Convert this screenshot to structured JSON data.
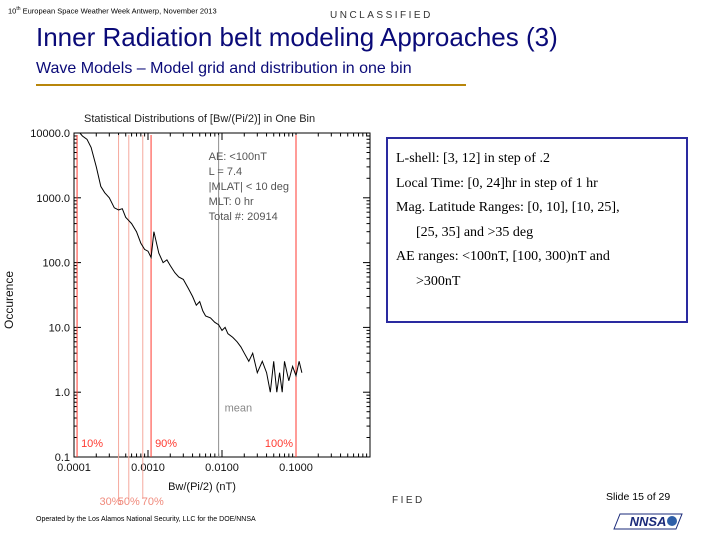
{
  "header": {
    "conference": "10th European Space Weather Week Antwerp, November 2013",
    "classification": "UNCLASSIFIED",
    "title": "Inner Radiation belt modeling Approaches (3)",
    "subtitle": "Wave Models – Model grid and distribution in one bin"
  },
  "info_box": {
    "lines": [
      "L-shell: [3, 12] in step of .2",
      "Local Time: [0, 24]hr in step of 1 hr",
      "Mag. Latitude Ranges: [0, 10], [10, 25],",
      "[25, 35] and >35 deg",
      "AE ranges:  <100nT, [100, 300)nT and",
      ">300nT"
    ]
  },
  "footer": {
    "classification_fragment": "FIED",
    "slide_label": "Slide 15  of 29",
    "operated_by": "Operated by the Los Alamos National Security, LLC for the DOE/NNSA",
    "logo_text": "NNSA"
  },
  "chart_data": {
    "type": "line",
    "title": "Statistical Distributions of [Bw/(Pi/2)] in One Bin",
    "xlabel": "Bw/(Pi/2) (nT)",
    "ylabel": "Occurence",
    "xscale": "log",
    "yscale": "log",
    "xlim": [
      0.0001,
      1.0
    ],
    "ylim": [
      0.1,
      10000.0
    ],
    "xticks": [
      "0.0001",
      "0.0010",
      "0.0100",
      "0.1000"
    ],
    "yticks": [
      "0.1",
      "1.0",
      "10.0",
      "100.0",
      "1000.0",
      "10000.0"
    ],
    "grid": false,
    "legend_text": [
      "AE: <100nT",
      "L = 7.4",
      "|MLAT| < 10 deg",
      "MLT: 0 hr",
      "Total #: 20914"
    ],
    "series": [
      {
        "x": [
          0.00012,
          0.00013,
          0.00015,
          0.00017,
          0.0002,
          0.00023,
          0.00026,
          0.0003,
          0.00035,
          0.0004,
          0.00045,
          0.0005,
          0.0006,
          0.0007,
          0.0008,
          0.0009,
          0.001,
          0.0011,
          0.0012,
          0.0014,
          0.0016,
          0.0018,
          0.002,
          0.0023,
          0.0026,
          0.003,
          0.0035,
          0.004,
          0.0045,
          0.005,
          0.0055,
          0.006,
          0.007,
          0.008,
          0.009,
          0.01,
          0.011,
          0.012,
          0.014,
          0.016,
          0.018,
          0.02,
          0.023,
          0.026,
          0.03,
          0.035,
          0.04,
          0.045,
          0.05,
          0.055,
          0.06,
          0.065,
          0.07,
          0.08,
          0.09,
          0.1,
          0.11,
          0.12
        ],
        "y": [
          10000,
          9000,
          8000,
          6000,
          3000,
          1500,
          1200,
          1000,
          700,
          650,
          680,
          500,
          400,
          300,
          200,
          160,
          150,
          120,
          300,
          140,
          100,
          110,
          90,
          70,
          60,
          55,
          40,
          30,
          22,
          25,
          18,
          15,
          14,
          12,
          11,
          9,
          10,
          8,
          7,
          6,
          5,
          4,
          3,
          4,
          2,
          3,
          2,
          1,
          3,
          1,
          2,
          1,
          3,
          1.5,
          2.5,
          1.8,
          3,
          2
        ]
      }
    ],
    "vlines": [
      {
        "x": 0.00011,
        "color": "#ff3a30",
        "label": "10%",
        "position": "top"
      },
      {
        "x": 0.0011,
        "color": "#ff3a30",
        "label": "90%",
        "position": "top"
      },
      {
        "x": 0.1,
        "color": "#ff3a30",
        "label": "100%",
        "position": "top"
      },
      {
        "x": 0.0004,
        "color": "#f6a99e",
        "label": "30%",
        "position": "bottom"
      },
      {
        "x": 0.00055,
        "color": "#f6a99e",
        "label": "50%",
        "position": "bottom"
      },
      {
        "x": 0.00085,
        "color": "#f6a99e",
        "label": "70%",
        "position": "bottom"
      },
      {
        "x": 0.009,
        "color": "#909090",
        "label": "mean",
        "position": "middle"
      }
    ]
  }
}
